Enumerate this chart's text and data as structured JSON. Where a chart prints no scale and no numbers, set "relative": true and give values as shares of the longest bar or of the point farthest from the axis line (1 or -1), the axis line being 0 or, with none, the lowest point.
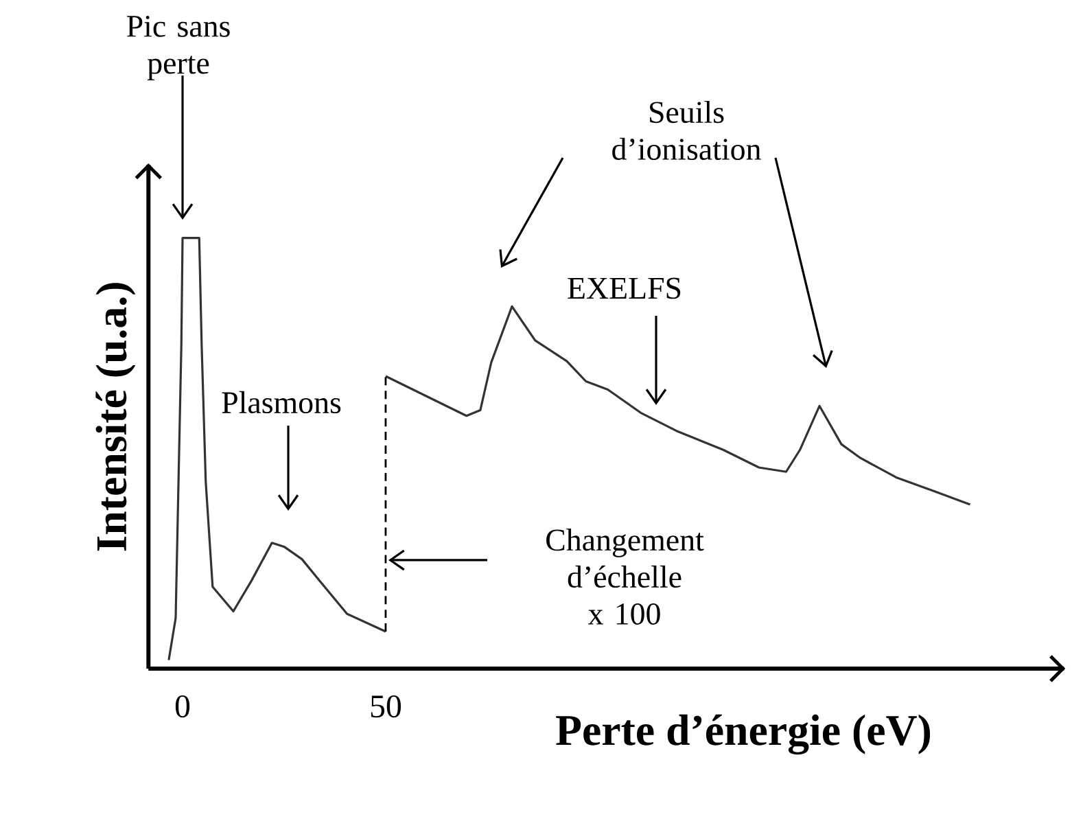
{
  "chart_data": {
    "type": "line",
    "relative": true,
    "xlabel": "Perte d’énergie (eV)",
    "ylabel": "Intensité (u.a.)",
    "xlim": [
      -8.4,
      217
    ],
    "xticks": [
      0,
      50
    ],
    "series": [
      {
        "type": "line",
        "color": "#333333",
        "x": [
          -3.4,
          -1.7,
          -0.3,
          0,
          4.1,
          4.7,
          5.7,
          7.4,
          12.5,
          16.9,
          22.0,
          25.0,
          29.4,
          33.8,
          40.5,
          50
        ],
        "values": [
          0.02,
          0.117,
          0.752,
          1,
          1,
          0.752,
          0.435,
          0.19,
          0.133,
          0.203,
          0.292,
          0.283,
          0.254,
          0.203,
          0.127,
          0.086
        ]
      },
      {
        "type": "line",
        "color": "#333333",
        "x": [
          50,
          69.9,
          73.3,
          76.0,
          81.1,
          86.8,
          94.6,
          99.3,
          104.7,
          112.8,
          121.6,
          133.1,
          141.9,
          148.6,
          152.0,
          156.8,
          162.2,
          166.9,
          175.7,
          184.8,
          193.9
        ],
        "values": [
          0.679,
          0.587,
          0.6,
          0.711,
          0.841,
          0.762,
          0.714,
          0.667,
          0.648,
          0.594,
          0.552,
          0.508,
          0.467,
          0.457,
          0.508,
          0.61,
          0.521,
          0.489,
          0.444,
          0.413,
          0.381
        ]
      }
    ],
    "ref_lines": [
      {
        "axis": "x",
        "value": 50,
        "line_style": "dashed",
        "color": "#000000"
      }
    ],
    "annotations": [
      "Pic sans perte",
      "Plasmons",
      "Seuils d’ionisation",
      "EXELFS",
      "Changement d’échelle x 100"
    ]
  }
}
